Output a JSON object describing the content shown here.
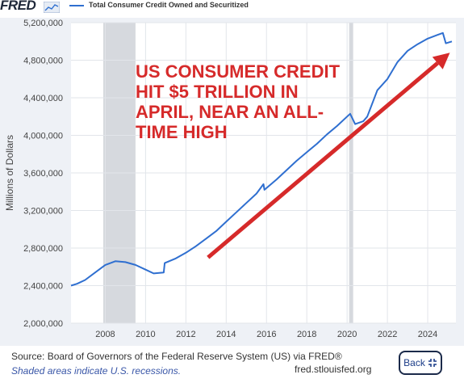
{
  "header": {
    "logo_text": "FRED",
    "legend_label": "Total Consumer Credit Owned and Securitized",
    "line_color": "#2f6fd0",
    "logo_mark_icon": "trend-line-icon"
  },
  "chart_data": {
    "type": "line",
    "title": "",
    "xlabel": "",
    "ylabel": "Millions of Dollars",
    "xlim": [
      2006.3,
      2025.4
    ],
    "ylim": [
      2000000,
      5200000
    ],
    "yticks": [
      2000000,
      2400000,
      2800000,
      3200000,
      3600000,
      4000000,
      4400000,
      4800000,
      5200000
    ],
    "ytick_labels": [
      "2,000,000",
      "2,400,000",
      "2,800,000",
      "3,200,000",
      "3,600,000",
      "4,000,000",
      "4,400,000",
      "4,800,000",
      "5,200,000"
    ],
    "xticks": [
      2008,
      2010,
      2012,
      2014,
      2016,
      2018,
      2020,
      2022,
      2024
    ],
    "xtick_labels": [
      "2008",
      "2010",
      "2012",
      "2014",
      "2016",
      "2018",
      "2020",
      "2022",
      "2024"
    ],
    "grid": true,
    "recessions": [
      [
        2007.9,
        2009.5
      ],
      [
        2020.1,
        2020.3
      ]
    ],
    "series": [
      {
        "name": "Total Consumer Credit Owned and Securitized",
        "color": "#2f6fd0",
        "x": [
          2006.3,
          2006.6,
          2007.0,
          2007.5,
          2008.0,
          2008.5,
          2009.0,
          2009.5,
          2010.0,
          2010.4,
          2010.9,
          2010.95,
          2011.5,
          2012.0,
          2012.5,
          2013.0,
          2013.5,
          2014.0,
          2014.5,
          2015.0,
          2015.5,
          2015.85,
          2015.9,
          2016.5,
          2017.0,
          2017.5,
          2018.0,
          2018.5,
          2019.0,
          2019.5,
          2020.0,
          2020.15,
          2020.4,
          2020.8,
          2021.0,
          2021.5,
          2022.0,
          2022.5,
          2023.0,
          2023.5,
          2024.0,
          2024.5,
          2024.75,
          2024.9,
          2025.2
        ],
        "y": [
          2400000,
          2420000,
          2460000,
          2540000,
          2620000,
          2660000,
          2650000,
          2620000,
          2570000,
          2530000,
          2540000,
          2640000,
          2690000,
          2750000,
          2820000,
          2900000,
          2980000,
          3080000,
          3180000,
          3280000,
          3380000,
          3480000,
          3420000,
          3530000,
          3630000,
          3730000,
          3820000,
          3910000,
          4010000,
          4100000,
          4200000,
          4230000,
          4120000,
          4150000,
          4200000,
          4480000,
          4600000,
          4780000,
          4900000,
          4970000,
          5030000,
          5070000,
          5090000,
          4980000,
          5000000
        ]
      }
    ],
    "annotations": [
      {
        "text": "US CONSUMER CREDIT HIT $5 TRILLION IN APRIL, NEAR AN ALL-TIME HIGH",
        "lines": [
          "US CONSUMER CREDIT",
          "HIT $5 TRILLION IN",
          "APRIL, NEAR AN ALL-",
          "TIME HIGH"
        ],
        "color": "#d62a2a"
      }
    ],
    "arrow": {
      "from": [
        2013.1,
        2700000
      ],
      "to": [
        2025.1,
        4880000
      ],
      "color": "#d62a2a"
    }
  },
  "footer": {
    "source": "Source: Board of Governors of the Federal Reserve System (US) via FRED®",
    "shaded_note": "Shaded areas indicate U.S. recessions.",
    "site": "fred.stlouisfed.org",
    "back_label": "Back",
    "back_icon": "collapse-icon"
  }
}
